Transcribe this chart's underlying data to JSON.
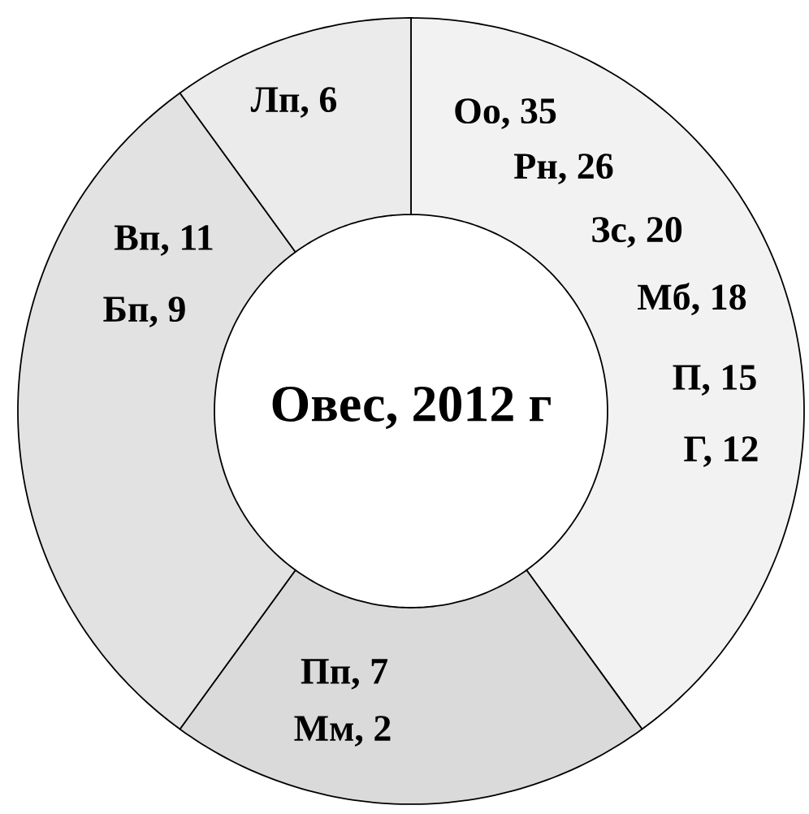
{
  "chart_data": {
    "type": "donut",
    "title": "Овес, 2012 г",
    "categories": [
      null,
      null,
      null,
      null
    ],
    "values": [
      40,
      20,
      30,
      10
    ],
    "colors": [
      "#f2f2f2",
      "#dadada",
      "#e2e2e2",
      "#ebebeb"
    ],
    "annotations": [
      "Оо, 35",
      "Рн, 26",
      "Зс, 20",
      "Мб, 18",
      "П, 15",
      "Г, 12",
      "Пп, 7",
      "Мм, 2",
      "Вп, 11",
      "Бп, 9",
      "Лп, 6"
    ]
  }
}
